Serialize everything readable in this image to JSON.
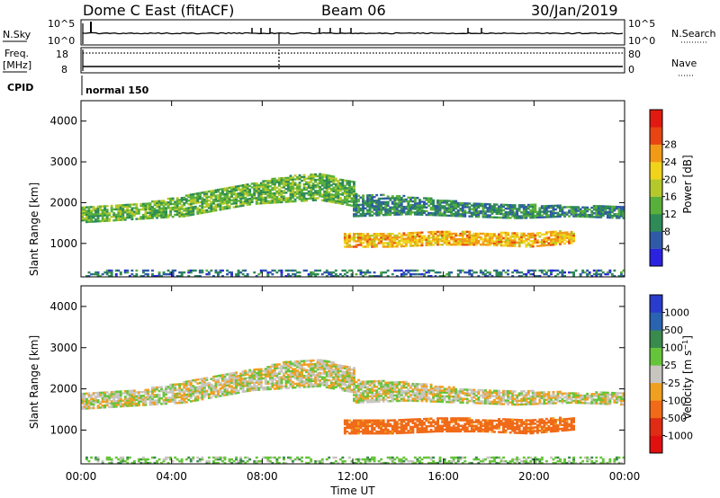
{
  "header": {
    "station": "Dome C East (fitACF)",
    "beam": "Beam 06",
    "date": "30/Jan/2019"
  },
  "sky_panel": {
    "left_label": "N.Sky",
    "right_label": "N.Search",
    "left_ticks": [
      "10^5",
      "10^0"
    ],
    "right_ticks": [
      "10^5",
      "10^0"
    ]
  },
  "freq_panel": {
    "left_label_1": "Freq.",
    "left_label_2": "[MHz]",
    "right_label": "Nave",
    "left_ticks": [
      "18",
      "8"
    ],
    "right_ticks": [
      "80",
      "0"
    ]
  },
  "cpid": {
    "label": "CPID",
    "mode": "normal 150"
  },
  "x_axis": {
    "label": "Time UT",
    "ticks": [
      "00:00",
      "04:00",
      "08:00",
      "12:00",
      "16:00",
      "20:00",
      "00:00"
    ]
  },
  "chart_data": [
    {
      "type": "heatmap",
      "name": "power",
      "ylabel": "Slant Range [km]",
      "ylim": [
        180,
        4500
      ],
      "y_ticks": [
        1000,
        2000,
        3000,
        4000
      ],
      "x_range_hours": [
        0,
        24
      ],
      "colorbar": {
        "label": "Power [dB]",
        "tick_labels": [
          "4",
          "8",
          "12",
          "16",
          "20",
          "24",
          "28"
        ],
        "colors": [
          "#2b22e0",
          "#2f5aa8",
          "#2e8a57",
          "#58b03a",
          "#b4c82c",
          "#f0d41c",
          "#f09a18",
          "#e84512",
          "#e01a10"
        ]
      },
      "echo_bands": [
        {
          "start_h": 0.0,
          "end_h": 12.0,
          "range_start": [
            1500,
            1550,
            1600,
            1650,
            1800,
            1950,
            2000,
            2050,
            1900
          ],
          "range_end": [
            1900,
            1950,
            2000,
            2150,
            2300,
            2450,
            2650,
            2700,
            2500
          ],
          "level": 12
        },
        {
          "start_h": 12.0,
          "end_h": 24.0,
          "range_start": [
            1650,
            1700,
            1650,
            1600,
            1650,
            1600
          ],
          "range_end": [
            2200,
            2150,
            2000,
            1950,
            1900,
            1900
          ],
          "level": 8
        },
        {
          "start_h": 11.6,
          "end_h": 21.8,
          "range_start": [
            900,
            900,
            950,
            950,
            900,
            1000
          ],
          "range_end": [
            1250,
            1250,
            1300,
            1250,
            1250,
            1300
          ],
          "level": 22
        },
        {
          "start_h": 0.2,
          "end_h": 24.0,
          "range_start": [
            180
          ],
          "range_end": [
            330
          ],
          "level": 6
        }
      ]
    },
    {
      "type": "heatmap",
      "name": "velocity",
      "ylabel": "Slant Range [km]",
      "ylim": [
        180,
        4500
      ],
      "y_ticks": [
        1000,
        2000,
        3000,
        4000
      ],
      "x_range_hours": [
        0,
        24
      ],
      "colorbar": {
        "label": "Velocity [m s-1]",
        "tick_labels": [
          "1000",
          "500",
          "100",
          "25",
          "-25",
          "-100",
          "-500",
          "-1000"
        ],
        "colors": [
          "#2a3ccc",
          "#2a63b0",
          "#3a8a4e",
          "#66c43a",
          "#c8c5c0",
          "#f0a020",
          "#f06a18",
          "#e02c14",
          "#e01010"
        ]
      },
      "echo_bands": [
        {
          "start_h": 0.0,
          "end_h": 12.0,
          "range_start": [
            1500,
            1550,
            1600,
            1650,
            1800,
            1950,
            2000,
            2050,
            1900
          ],
          "range_end": [
            1900,
            1950,
            2000,
            2150,
            2300,
            2450,
            2650,
            2700,
            2500
          ],
          "level": 0
        },
        {
          "start_h": 12.0,
          "end_h": 24.0,
          "range_start": [
            1650,
            1700,
            1650,
            1600,
            1650,
            1600
          ],
          "range_end": [
            2200,
            2150,
            2000,
            1950,
            1900,
            1900
          ],
          "level": 0
        },
        {
          "start_h": 11.6,
          "end_h": 21.8,
          "range_start": [
            900,
            900,
            950,
            950,
            900,
            1000
          ],
          "range_end": [
            1250,
            1250,
            1300,
            1250,
            1250,
            1300
          ],
          "level": -150
        },
        {
          "start_h": 0.2,
          "end_h": 24.0,
          "range_start": [
            180
          ],
          "range_end": [
            330
          ],
          "level": 60
        }
      ]
    }
  ]
}
